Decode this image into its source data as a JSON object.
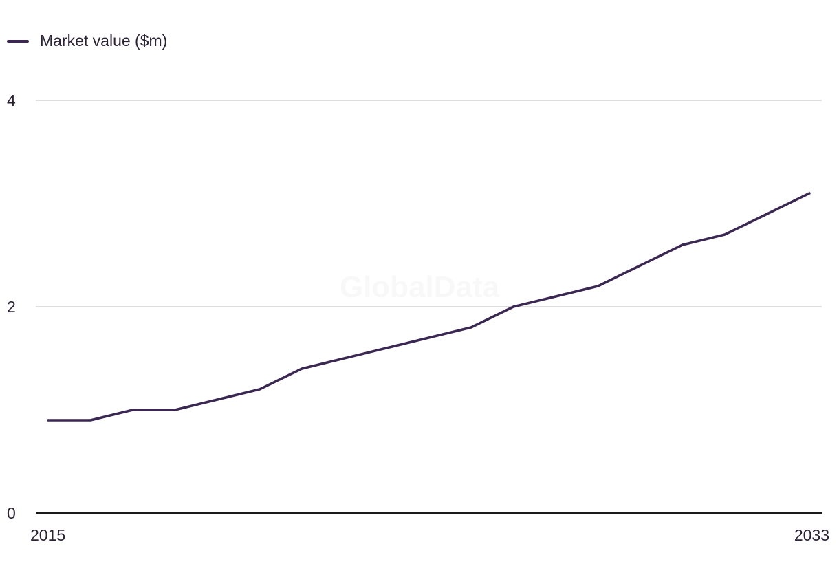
{
  "legend": {
    "label": "Market value ($m)"
  },
  "watermark": "GlobalData",
  "colors": {
    "series": "#3a2752",
    "grid": "#d4d4d4",
    "axis": "#1a1a1a",
    "text": "#2b2235"
  },
  "chart_data": {
    "type": "line",
    "title": "",
    "xlabel": "",
    "ylabel": "",
    "x": [
      2015,
      2016,
      2017,
      2018,
      2019,
      2020,
      2021,
      2022,
      2023,
      2024,
      2025,
      2026,
      2027,
      2028,
      2029,
      2030,
      2031,
      2032,
      2033
    ],
    "x_tick_labels": [
      "2015",
      "2033"
    ],
    "y_ticks": [
      0,
      2,
      4
    ],
    "ylim": [
      0,
      4
    ],
    "grid": true,
    "legend_position": "top-left",
    "series": [
      {
        "name": "Market value ($m)",
        "values": [
          0.9,
          0.9,
          1.0,
          1.0,
          1.1,
          1.2,
          1.4,
          1.5,
          1.6,
          1.7,
          1.8,
          2.0,
          2.1,
          2.2,
          2.4,
          2.6,
          2.7,
          2.9,
          3.1
        ]
      }
    ]
  }
}
